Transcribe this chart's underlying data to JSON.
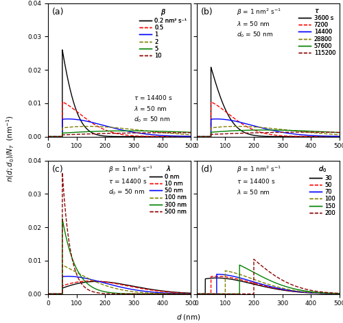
{
  "panel_a": {
    "label": "(a)",
    "beta_values": [
      0.2,
      0.5,
      1,
      2,
      5,
      10
    ],
    "beta_colors": [
      "#000000",
      "#ff0000",
      "#0000ff",
      "#808000",
      "#008000",
      "#8b0000"
    ],
    "beta_styles": [
      "-",
      "--",
      "-",
      "--",
      "-",
      "--"
    ],
    "beta_labels": [
      "0.2 nm² s⁻¹",
      "0.5",
      "1",
      "2",
      "5",
      "10"
    ],
    "tau": 14400,
    "lam": 50,
    "d0": 50
  },
  "panel_b": {
    "label": "(b)",
    "tau_values": [
      3600,
      7200,
      14400,
      28800,
      57600,
      115200
    ],
    "tau_colors": [
      "#000000",
      "#ff0000",
      "#0000ff",
      "#808000",
      "#008000",
      "#8b0000"
    ],
    "tau_styles": [
      "-",
      "--",
      "-",
      "--",
      "-",
      "--"
    ],
    "tau_labels": [
      "3600 s",
      "7200",
      "14400",
      "28800",
      "57600",
      "115200"
    ],
    "beta": 1,
    "lam": 50,
    "d0": 50
  },
  "panel_c": {
    "label": "(c)",
    "lam_values": [
      0,
      10,
      50,
      100,
      300,
      500
    ],
    "lam_colors": [
      "#000000",
      "#ff0000",
      "#0000ff",
      "#808000",
      "#008000",
      "#8b0000"
    ],
    "lam_styles": [
      "-",
      "--",
      "-",
      "--",
      "-",
      "--"
    ],
    "lam_labels": [
      "0 nm",
      "10 nm",
      "50 nm",
      "100 nm",
      "300 nm",
      "500 nm"
    ],
    "beta": 1,
    "tau": 14400,
    "d0": 50
  },
  "panel_d": {
    "label": "(d)",
    "d0_values": [
      30,
      50,
      70,
      100,
      150,
      200
    ],
    "d0_colors": [
      "#000000",
      "#ff0000",
      "#0000ff",
      "#808000",
      "#008000",
      "#8b0000"
    ],
    "d0_styles": [
      "-",
      "--",
      "-",
      "--",
      "-",
      "--"
    ],
    "d0_labels": [
      "30",
      "50",
      "70",
      "100",
      "150",
      "200"
    ],
    "beta": 1,
    "tau": 14400,
    "lam": 50
  },
  "xlim": [
    0,
    500
  ],
  "ylim": [
    0,
    0.04
  ],
  "yticks": [
    0.0,
    0.01,
    0.02,
    0.03,
    0.04
  ],
  "xticks": [
    0,
    100,
    200,
    300,
    400,
    500
  ],
  "ylabel": "n(d;d₀)/N_T  (nm⁻¹)",
  "xlabel": "d (nm)"
}
